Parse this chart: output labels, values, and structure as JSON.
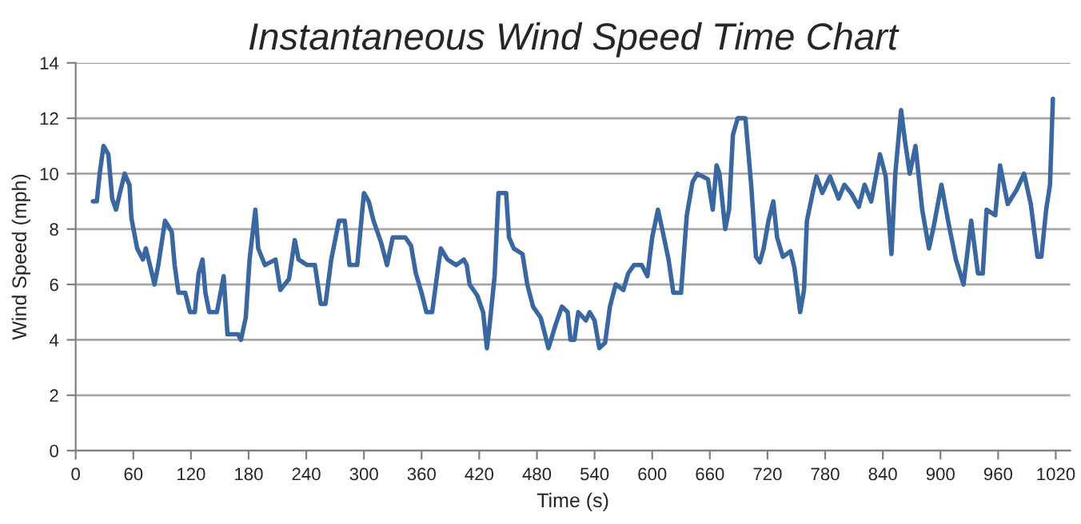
{
  "chart_data": {
    "type": "line",
    "title": "Instantaneous Wind Speed Time Chart",
    "xlabel": "Time (s)",
    "ylabel": "Wind Speed (mph)",
    "xlim": [
      0,
      1035
    ],
    "xticks": [
      0,
      60,
      120,
      180,
      240,
      300,
      360,
      420,
      480,
      540,
      600,
      660,
      720,
      780,
      840,
      900,
      960,
      1020
    ],
    "ylim": [
      0,
      14
    ],
    "yticks": [
      0,
      2,
      4,
      6,
      8,
      10,
      12,
      14
    ],
    "grid": "y",
    "marker": "none",
    "line_style": "solid",
    "series": [
      {
        "color": "#3a67a0",
        "x": [
          18,
          22,
          25,
          29,
          34,
          38,
          42,
          46,
          51,
          56,
          58,
          64,
          70,
          73,
          78,
          82,
          86,
          93,
          100,
          103,
          107,
          114,
          119,
          124,
          128,
          132,
          135,
          139,
          147,
          154,
          158,
          169,
          172,
          177,
          181,
          187,
          190,
          197,
          208,
          213,
          222,
          228,
          232,
          241,
          249,
          255,
          260,
          266,
          274,
          280,
          285,
          293,
          300,
          305,
          310,
          318,
          324,
          330,
          335,
          343,
          349,
          354,
          360,
          365,
          371,
          376,
          380,
          387,
          396,
          404,
          407,
          410,
          418,
          424,
          428,
          431,
          436,
          440,
          448,
          451,
          456,
          465,
          470,
          476,
          484,
          492,
          500,
          506,
          512,
          515,
          519,
          523,
          531,
          535,
          540,
          545,
          551,
          556,
          562,
          570,
          575,
          581,
          589,
          595,
          600,
          606,
          611,
          617,
          622,
          630,
          636,
          642,
          647,
          658,
          663,
          667,
          670,
          676,
          680,
          684,
          689,
          697,
          703,
          708,
          712,
          716,
          721,
          726,
          730,
          736,
          744,
          748,
          754,
          758,
          761,
          767,
          771,
          777,
          785,
          794,
          800,
          807,
          815,
          821,
          828,
          837,
          843,
          849,
          853,
          859,
          863,
          868,
          874,
          881,
          888,
          893,
          901,
          909,
          916,
          924,
          932,
          939,
          944,
          948,
          957,
          962,
          970,
          979,
          987,
          994,
          1001,
          1005,
          1010,
          1014,
          1017
        ],
        "values": [
          9,
          9,
          10,
          11,
          10.7,
          9.1,
          8.7,
          9.3,
          10,
          9.6,
          8.4,
          7.3,
          6.9,
          7.3,
          6.6,
          6,
          6.7,
          8.3,
          7.9,
          6.7,
          5.7,
          5.7,
          5,
          5,
          6.4,
          6.9,
          5.7,
          5,
          5,
          6.3,
          4.2,
          4.2,
          4,
          4.8,
          6.9,
          8.7,
          7.3,
          6.7,
          6.9,
          5.8,
          6.2,
          7.6,
          6.9,
          6.7,
          6.7,
          5.3,
          5.3,
          6.9,
          8.3,
          8.3,
          6.7,
          6.7,
          9.3,
          9,
          8.3,
          7.5,
          6.7,
          7.7,
          7.7,
          7.7,
          7.4,
          6.4,
          5.7,
          5,
          5,
          6.3,
          7.3,
          6.9,
          6.7,
          6.9,
          6.7,
          6,
          5.6,
          5,
          3.7,
          4.6,
          6.3,
          9.3,
          9.3,
          7.7,
          7.3,
          7.1,
          6,
          5.2,
          4.8,
          3.7,
          4.6,
          5.2,
          5,
          4,
          4,
          5,
          4.7,
          5,
          4.7,
          3.7,
          3.9,
          5.2,
          6,
          5.8,
          6.4,
          6.7,
          6.7,
          6.3,
          7.7,
          8.7,
          7.9,
          6.9,
          5.7,
          5.7,
          8.5,
          9.7,
          10,
          9.8,
          8.7,
          10.3,
          10,
          8,
          8.7,
          11.4,
          12,
          12,
          9.6,
          7,
          6.8,
          7.3,
          8.3,
          9,
          7.7,
          7,
          7.2,
          6.6,
          5,
          5.8,
          8.3,
          9.3,
          9.9,
          9.3,
          9.9,
          9.1,
          9.6,
          9.3,
          8.8,
          9.6,
          9,
          10.7,
          9.9,
          7.1,
          10,
          12.3,
          11.2,
          10,
          11,
          8.7,
          7.3,
          8.1,
          9.6,
          8.1,
          6.9,
          6,
          8.3,
          6.4,
          6.4,
          8.7,
          8.5,
          10.3,
          8.9,
          9.4,
          10,
          8.9,
          7,
          7,
          8.7,
          9.6,
          12.7
        ]
      }
    ]
  }
}
